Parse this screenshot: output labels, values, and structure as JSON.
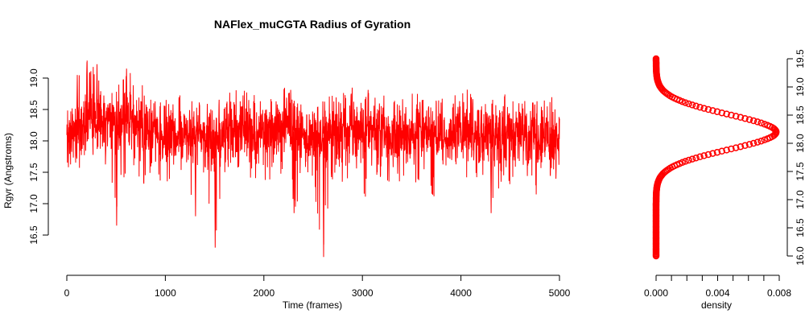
{
  "chart_data": [
    {
      "type": "line",
      "title": "NAFlex_muCGTA Radius of Gyration",
      "xlabel": "Time (frames)",
      "ylabel": "Rgyr (Angstroms)",
      "xlim": [
        0,
        5000
      ],
      "ylim": [
        16.5,
        19.0
      ],
      "x_ticks": [
        "0",
        "1000",
        "2000",
        "3000",
        "4000",
        "5000"
      ],
      "y_ticks": [
        "16.5",
        "17.0",
        "17.5",
        "18.0",
        "18.5",
        "19.0"
      ],
      "grid": false,
      "legend": "none",
      "color": "#ff0000",
      "series": [
        {
          "x": [
            0,
            100,
            200,
            300,
            400,
            500,
            600,
            700,
            800,
            900,
            1000,
            1100,
            1200,
            1300,
            1400,
            1500,
            1600,
            1700,
            1800,
            1900,
            2000,
            2100,
            2200,
            2300,
            2400,
            2500,
            2600,
            2700,
            2800,
            2900,
            3000,
            3100,
            3200,
            3300,
            3400,
            3500,
            3600,
            3700,
            3800,
            3900,
            4000,
            4100,
            4200,
            4300,
            4400,
            4500,
            4600,
            4700,
            4800,
            4900,
            5000
          ],
          "mean": [
            18.15,
            18.2,
            18.3,
            18.35,
            18.3,
            18.25,
            18.3,
            18.3,
            18.2,
            18.1,
            18.05,
            18.1,
            18.15,
            18.1,
            18.05,
            18.0,
            18.1,
            18.15,
            18.15,
            18.1,
            18.15,
            18.1,
            18.2,
            18.15,
            18.1,
            18.05,
            18.05,
            18.1,
            18.15,
            18.15,
            18.15,
            18.2,
            18.1,
            18.1,
            18.05,
            18.1,
            18.15,
            18.1,
            18.1,
            18.1,
            18.2,
            18.15,
            18.1,
            18.05,
            18.1,
            18.1,
            18.15,
            18.1,
            18.05,
            18.1,
            18.05
          ],
          "max": [
            18.7,
            19.05,
            19.28,
            19.22,
            19.0,
            18.85,
            19.15,
            19.0,
            18.85,
            18.75,
            18.7,
            18.75,
            18.8,
            18.7,
            18.6,
            18.6,
            18.75,
            18.8,
            18.85,
            18.75,
            18.8,
            18.75,
            18.85,
            18.8,
            18.7,
            18.7,
            18.7,
            18.75,
            18.8,
            18.85,
            18.8,
            18.85,
            18.75,
            18.75,
            18.7,
            18.75,
            18.8,
            18.7,
            18.7,
            18.8,
            18.85,
            18.8,
            18.7,
            18.7,
            18.75,
            18.75,
            18.8,
            18.75,
            18.7,
            18.7,
            18.7
          ],
          "min": [
            17.35,
            17.5,
            17.6,
            17.65,
            17.55,
            16.65,
            17.45,
            17.4,
            17.3,
            17.35,
            17.3,
            17.35,
            17.35,
            16.8,
            17.25,
            16.3,
            17.3,
            17.4,
            17.35,
            17.3,
            17.35,
            17.25,
            17.4,
            16.85,
            17.3,
            17.25,
            16.15,
            17.3,
            17.35,
            17.35,
            16.95,
            17.45,
            17.3,
            17.3,
            17.25,
            17.3,
            17.35,
            16.95,
            17.3,
            17.3,
            17.4,
            17.35,
            17.25,
            16.85,
            17.3,
            17.3,
            17.35,
            17.3,
            16.95,
            17.3,
            17.3
          ]
        }
      ]
    },
    {
      "type": "scatter",
      "title": "",
      "xlabel": "density",
      "ylabel": "",
      "xlim": [
        0,
        0.008
      ],
      "ylim": [
        16.0,
        19.5
      ],
      "x_ticks": [
        "0.000",
        "0.004",
        "0.008"
      ],
      "y_ticks": [
        "16.0",
        "16.5",
        "17.0",
        "17.5",
        "18.0",
        "18.5",
        "19.0",
        "19.5"
      ],
      "grid": false,
      "legend": "none",
      "color": "#ff0000",
      "series": [
        {
          "density_mean": 18.2,
          "density_sd": 0.31,
          "density_peak": 0.0078,
          "y_range": [
            16.0,
            19.5
          ]
        }
      ]
    }
  ]
}
